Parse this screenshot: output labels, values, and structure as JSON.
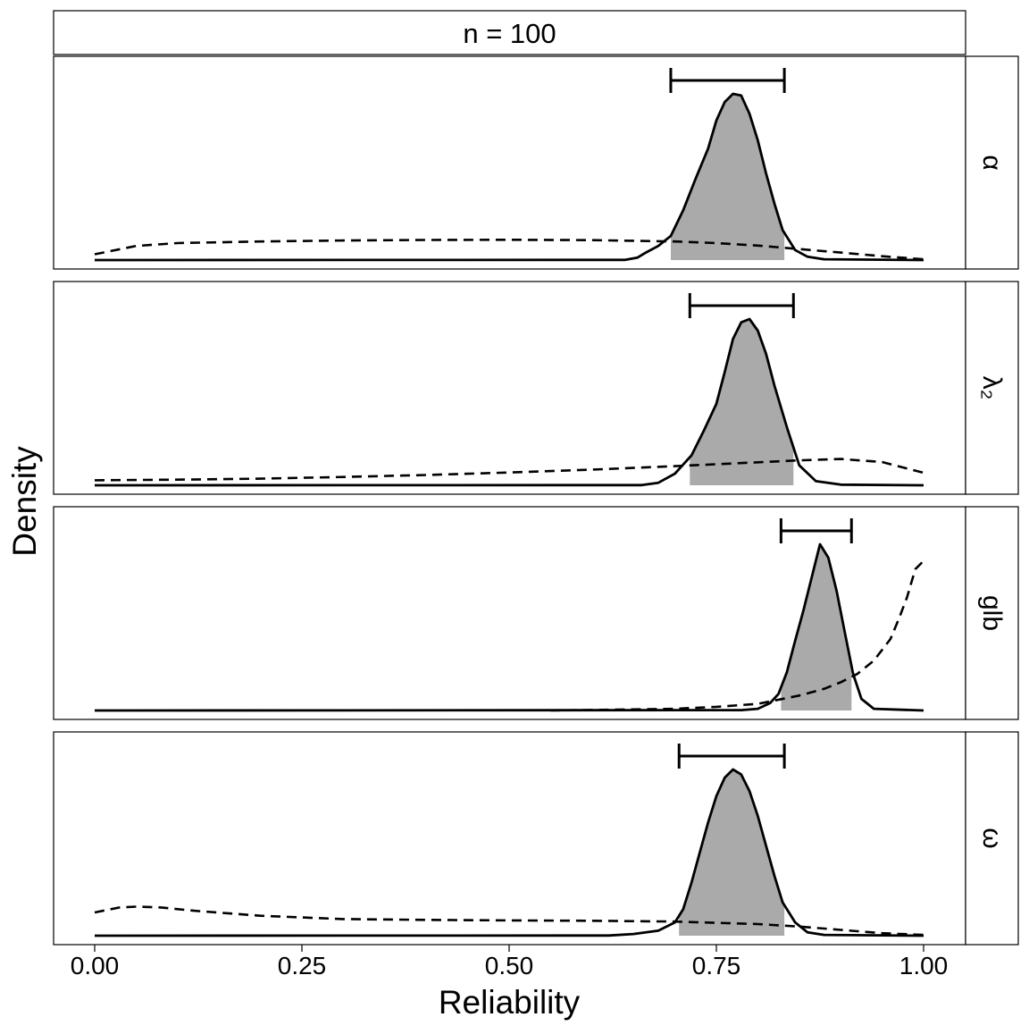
{
  "chart_data": {
    "type": "area",
    "facet_title": "n = 100",
    "xlabel": "Reliability",
    "ylabel": "Density",
    "xlim": [
      0,
      1
    ],
    "x_ticks": [
      0,
      0.25,
      0.5,
      0.75,
      1
    ],
    "x_tick_labels": [
      "0.00",
      "0.25",
      "0.50",
      "0.75",
      "1.00"
    ],
    "grid": false,
    "legend": "none",
    "colors": {
      "interval_fill": "#aaaaaa",
      "line": "#000000",
      "strip_background": "#ffffff"
    },
    "series_styles": {
      "posterior": "solid",
      "prior": "dashed"
    },
    "panels": [
      {
        "label": "α",
        "ylim": [
          0,
          1
        ],
        "interval": [
          0.695,
          0.832
        ],
        "posterior": {
          "x": [
            0,
            0.64,
            0.655,
            0.665,
            0.68,
            0.695,
            0.71,
            0.725,
            0.74,
            0.75,
            0.76,
            0.77,
            0.78,
            0.79,
            0.8,
            0.81,
            0.82,
            0.83,
            0.845,
            0.86,
            0.88,
            1
          ],
          "y": [
            0,
            0.001,
            0.015,
            0.045,
            0.085,
            0.145,
            0.3,
            0.49,
            0.67,
            0.84,
            0.95,
            1.0,
            0.99,
            0.88,
            0.72,
            0.52,
            0.34,
            0.18,
            0.06,
            0.02,
            0.005,
            0
          ]
        },
        "prior": {
          "x": [
            0,
            0.05,
            0.1,
            0.2,
            0.3,
            0.4,
            0.5,
            0.6,
            0.7,
            0.75,
            0.8,
            0.85,
            0.9,
            0.95,
            1
          ],
          "y": [
            0.035,
            0.085,
            0.102,
            0.112,
            0.118,
            0.121,
            0.122,
            0.12,
            0.112,
            0.102,
            0.087,
            0.066,
            0.045,
            0.023,
            0.005
          ]
        }
      },
      {
        "label": "λ₂",
        "ylim": [
          0,
          1
        ],
        "interval": [
          0.718,
          0.843
        ],
        "posterior": {
          "x": [
            0,
            0.66,
            0.68,
            0.7,
            0.72,
            0.735,
            0.75,
            0.76,
            0.77,
            0.78,
            0.79,
            0.8,
            0.81,
            0.82,
            0.835,
            0.85,
            0.87,
            0.9,
            1
          ],
          "y": [
            0,
            0.001,
            0.015,
            0.07,
            0.18,
            0.33,
            0.49,
            0.68,
            0.88,
            0.98,
            1.0,
            0.93,
            0.79,
            0.6,
            0.35,
            0.12,
            0.025,
            0.004,
            0
          ]
        },
        "prior": {
          "x": [
            0,
            0.1,
            0.2,
            0.3,
            0.4,
            0.5,
            0.6,
            0.7,
            0.8,
            0.85,
            0.9,
            0.95,
            1
          ],
          "y": [
            0.03,
            0.034,
            0.04,
            0.05,
            0.062,
            0.077,
            0.094,
            0.115,
            0.138,
            0.15,
            0.158,
            0.14,
            0.075
          ]
        }
      },
      {
        "label": "glb",
        "ylim": [
          0,
          1
        ],
        "interval": [
          0.828,
          0.913
        ],
        "posterior": {
          "x": [
            0,
            0.78,
            0.8,
            0.815,
            0.825,
            0.835,
            0.845,
            0.855,
            0.865,
            0.875,
            0.885,
            0.895,
            0.905,
            0.915,
            0.925,
            0.94,
            1
          ],
          "y": [
            0,
            0.002,
            0.01,
            0.045,
            0.1,
            0.23,
            0.42,
            0.6,
            0.8,
            1.0,
            0.92,
            0.72,
            0.47,
            0.22,
            0.07,
            0.01,
            0
          ]
        },
        "prior": {
          "x": [
            0.55,
            0.6,
            0.7,
            0.75,
            0.8,
            0.85,
            0.88,
            0.9,
            0.92,
            0.94,
            0.96,
            0.97,
            0.98,
            0.99,
            1
          ],
          "y": [
            0,
            0.003,
            0.01,
            0.022,
            0.04,
            0.09,
            0.13,
            0.17,
            0.22,
            0.3,
            0.43,
            0.55,
            0.68,
            0.85,
            0.9
          ]
        }
      },
      {
        "label": "ω",
        "ylim": [
          0,
          1
        ],
        "interval": [
          0.705,
          0.832
        ],
        "posterior": {
          "x": [
            0,
            0.62,
            0.65,
            0.68,
            0.69,
            0.7,
            0.71,
            0.72,
            0.73,
            0.74,
            0.75,
            0.76,
            0.77,
            0.78,
            0.79,
            0.8,
            0.81,
            0.82,
            0.83,
            0.845,
            0.86,
            0.88,
            1
          ],
          "y": [
            0,
            0.001,
            0.01,
            0.03,
            0.055,
            0.08,
            0.16,
            0.32,
            0.5,
            0.68,
            0.84,
            0.95,
            1.0,
            0.97,
            0.87,
            0.72,
            0.54,
            0.36,
            0.2,
            0.08,
            0.02,
            0.005,
            0
          ]
        },
        "prior": {
          "x": [
            0,
            0.03,
            0.05,
            0.08,
            0.12,
            0.2,
            0.3,
            0.4,
            0.5,
            0.6,
            0.7,
            0.8,
            0.85,
            0.9,
            0.95,
            1
          ],
          "y": [
            0.14,
            0.17,
            0.175,
            0.17,
            0.15,
            0.12,
            0.1,
            0.095,
            0.092,
            0.09,
            0.085,
            0.07,
            0.055,
            0.035,
            0.015,
            0.005
          ]
        }
      }
    ]
  }
}
